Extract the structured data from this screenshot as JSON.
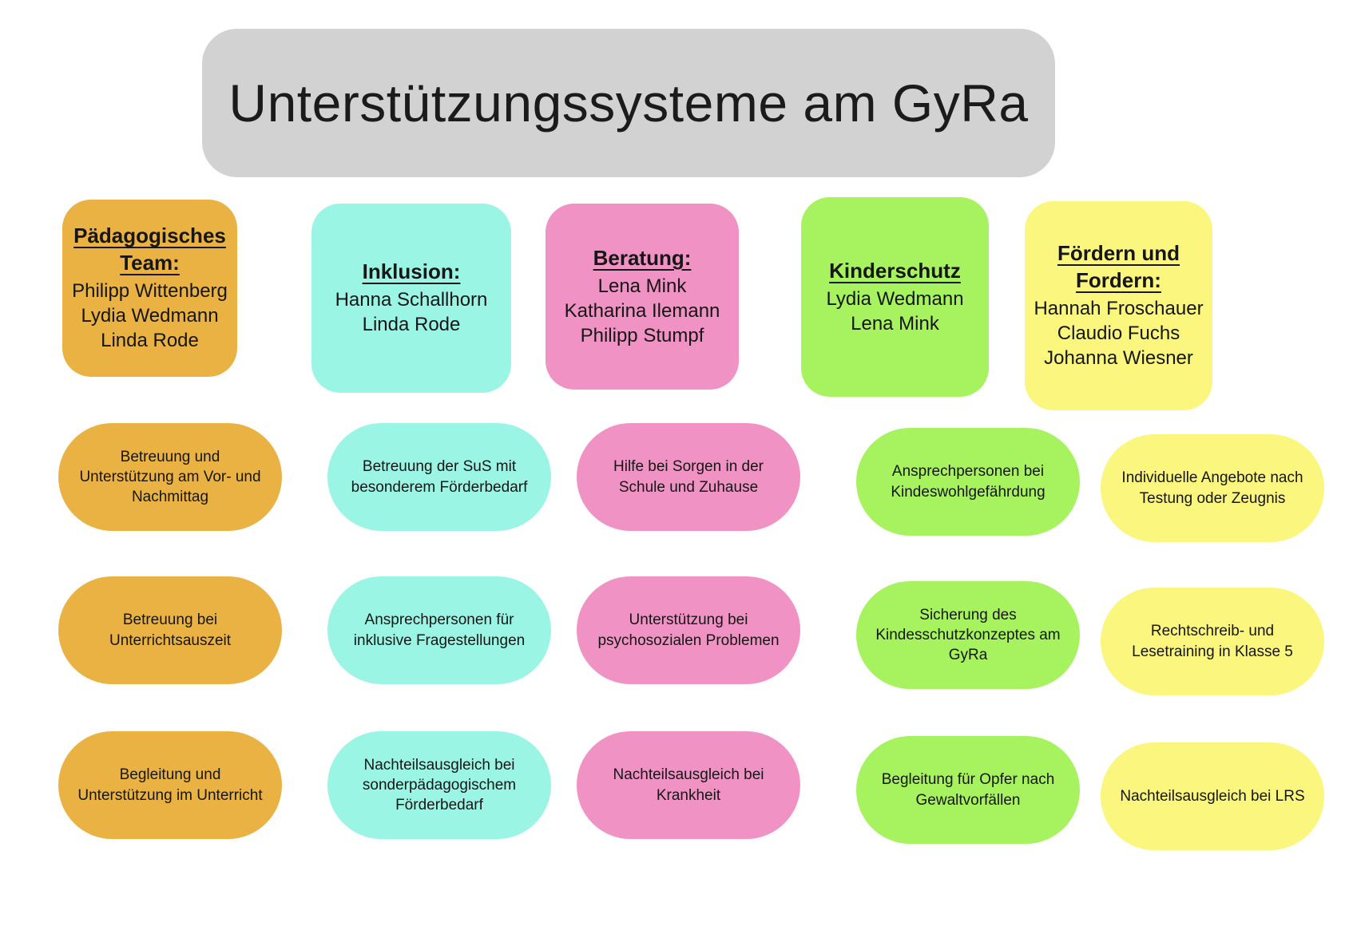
{
  "title": "Unterstützungssysteme am GyRa",
  "title_bg": "#D2D2D2",
  "text_color": "#161616",
  "columns": [
    {
      "heading": "Pädagogisches Team:",
      "color": "#E9B243",
      "members": [
        "Philipp Wittenberg",
        "Lydia Wedmann",
        "Linda Rode"
      ],
      "items": [
        "Betreuung und Unterstützung am Vor- und Nachmittag",
        "Betreuung bei Unterrichtsauszeit",
        "Begleitung und Unterstützung im Unterricht"
      ]
    },
    {
      "heading": "Inklusion:",
      "color": "#9BF5E4",
      "members": [
        "Hanna Schallhorn",
        "Linda Rode"
      ],
      "items": [
        "Betreuung der SuS mit besonderem Förderbedarf",
        "Ansprechpersonen für inklusive Fragestellungen",
        "Nachteilsausgleich bei sonderpädagogischem Förderbedarf"
      ]
    },
    {
      "heading": "Beratung:",
      "color": "#F092C3",
      "members": [
        "Lena Mink",
        "Katharina Ilemann",
        "Philipp Stumpf"
      ],
      "items": [
        "Hilfe bei Sorgen in der Schule und Zuhause",
        "Unterstützung bei psychosozialen Problemen",
        "Nachteilsausgleich bei Krankheit"
      ]
    },
    {
      "heading": "Kinderschutz",
      "color": "#A6F35F",
      "members": [
        "Lydia Wedmann",
        "Lena Mink"
      ],
      "items": [
        "Ansprechpersonen bei Kindeswohlgefährdung",
        "Sicherung des Kindesschutzkonzeptes am GyRa",
        "Begleitung für Opfer nach Gewaltvorfällen"
      ]
    },
    {
      "heading": "Fördern und Fordern:",
      "color": "#FAF67E",
      "members": [
        "Hannah Froschauer",
        "Claudio Fuchs",
        "Johanna Wiesner"
      ],
      "items": [
        "Individuelle Angebote nach Testung oder Zeugnis",
        "Rechtschreib- und Lesetraining in Klasse 5",
        "Nachteilsausgleich bei LRS"
      ]
    }
  ]
}
